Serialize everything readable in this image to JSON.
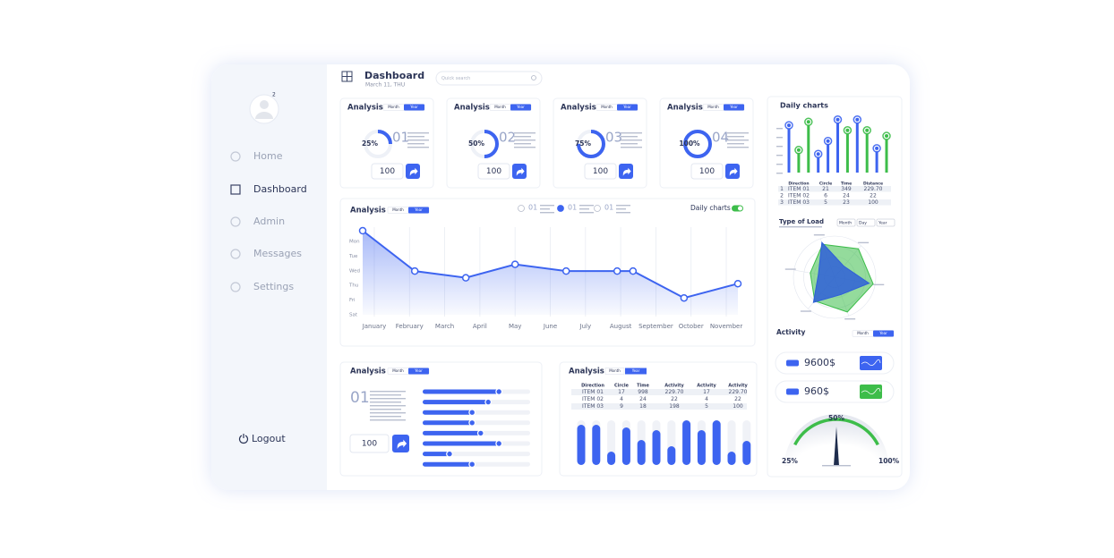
{
  "sidebar": {
    "badge": "2",
    "nav": [
      "Home",
      "Dashboard",
      "Admin",
      "Messages",
      "Settings"
    ],
    "logout": "Logout"
  },
  "header": {
    "title": "Dashboard",
    "date": "March 11, THU",
    "search_placeholder": "Quick search"
  },
  "toggle": [
    "Month",
    "Year"
  ],
  "kpi_cards": [
    {
      "title": "Analysis",
      "percent": 25,
      "percent_label": "25%",
      "number": "01",
      "value": "100"
    },
    {
      "title": "Analysis",
      "percent": 50,
      "percent_label": "50%",
      "number": "02",
      "value": "100"
    },
    {
      "title": "Analysis",
      "percent": 75,
      "percent_label": "75%",
      "number": "03",
      "value": "100"
    },
    {
      "title": "Analysis",
      "percent": 100,
      "percent_label": "100%",
      "number": "04",
      "value": "100"
    }
  ],
  "line_chart": {
    "title": "Analysis",
    "legend": [
      "01",
      "01",
      "01"
    ],
    "switch_label": "Daily charts",
    "y_categories": [
      "Mon",
      "Tue",
      "Wed",
      "Thu",
      "Fri",
      "Sat"
    ],
    "x_categories": [
      "January",
      "February",
      "March",
      "April",
      "May",
      "June",
      "July",
      "August",
      "September",
      "October",
      "November"
    ],
    "x": [
      -0.33,
      1.15,
      2.6,
      4.0,
      5.45,
      6.9,
      7.35,
      8.8,
      10.33
    ],
    "values": [
      100,
      52,
      44,
      60,
      52,
      52,
      52,
      20,
      37
    ],
    "xlim": [
      -0.33,
      10.33
    ],
    "ylim": [
      0,
      100
    ],
    "color": "#3d64f0"
  },
  "progress_card": {
    "title": "Analysis",
    "number": "01",
    "value": "100",
    "values": [
      71,
      61,
      46,
      46,
      54,
      71,
      25,
      46
    ],
    "color": "#3d64f0"
  },
  "table_card": {
    "title": "Analysis",
    "tabs": [
      "Month",
      "Year"
    ],
    "columns": [
      "Direction",
      "Circle",
      "Time",
      "Activity",
      "Activity",
      "Activity"
    ],
    "rows": [
      [
        "ITEM 01",
        "17",
        "998",
        "229.70",
        "17",
        "229.70"
      ],
      [
        "ITEM 02",
        "4",
        "24",
        "22",
        "4",
        "22"
      ],
      [
        "ITEM 03",
        "9",
        "18",
        "198",
        "5",
        "100"
      ]
    ],
    "values": [
      90,
      90,
      30,
      84,
      56,
      78,
      42,
      100,
      78,
      100,
      30,
      54
    ],
    "color": "#3d64f0"
  },
  "daily_charts": {
    "title": "Daily charts",
    "values": [
      84,
      40,
      90,
      33,
      56,
      94,
      75,
      94,
      75,
      43,
      65
    ],
    "colors": [
      "#3d64f0",
      "#3dbd4a",
      "#3dbd4a",
      "#3d64f0",
      "#3d64f0",
      "#3d64f0",
      "#3dbd4a",
      "#3d64f0",
      "#3dbd4a",
      "#3d64f0",
      "#3dbd4a"
    ],
    "ylim": [
      0,
      100
    ],
    "columns": [
      "Direction",
      "Circle",
      "Time",
      "Distance"
    ],
    "rows": [
      [
        "1",
        "ITEM 01",
        "21",
        "349",
        "229.70"
      ],
      [
        "2",
        "ITEM 02",
        "6",
        "24",
        "22"
      ],
      [
        "3",
        "ITEM 03",
        "5",
        "23",
        "100"
      ]
    ]
  },
  "type_of_load": {
    "title": "Type of Load",
    "dropdowns": [
      "Month",
      "Day",
      "Year"
    ],
    "series": [
      {
        "color": "#3dbd4a",
        "values": [
          0.85,
          0.9,
          0.95,
          0.9,
          0.75,
          0.6
        ]
      },
      {
        "color": "#2f5fd8",
        "values": [
          0.9,
          0.35,
          0.85,
          0.45,
          0.8,
          0.4
        ]
      }
    ]
  },
  "activity": {
    "title": "Activity",
    "items": [
      "9600$",
      "960$"
    ]
  },
  "gauge": {
    "value": 50,
    "value_label": "50%",
    "min_label": "25%",
    "max_label": "100%"
  }
}
